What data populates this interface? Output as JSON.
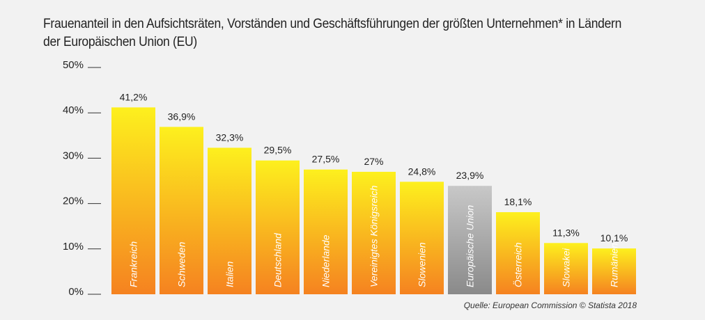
{
  "chart_data": {
    "type": "bar",
    "title": "Frauenanteil in den Aufsichtsräten, Vorständen und Geschäftsführungen der größten Unternehmen* in Ländern der Europäischen Union (EU)",
    "source": "Quelle: European Commission © Statista 2018",
    "ylim": [
      0,
      50
    ],
    "yticks": [
      {
        "value": 0,
        "label": "0%"
      },
      {
        "value": 10,
        "label": "10%"
      },
      {
        "value": 20,
        "label": "20%"
      },
      {
        "value": 30,
        "label": "30%"
      },
      {
        "value": 40,
        "label": "40%"
      },
      {
        "value": 50,
        "label": "50%"
      }
    ],
    "grid": false,
    "categories": [
      "Frankreich",
      "Schweden",
      "Italien",
      "Deutschland",
      "Niederlande",
      "Vereinigtes Königsreich",
      "Slowenien",
      "Europäische Union",
      "Österreich",
      "Slowakei",
      "Rumänien"
    ],
    "values": [
      41.2,
      36.9,
      32.3,
      29.5,
      27.5,
      27,
      24.8,
      23.9,
      18.1,
      11.3,
      10.1
    ],
    "value_labels": [
      "41,2%",
      "36,9%",
      "32,3%",
      "29,5%",
      "27,5%",
      "27%",
      "24,8%",
      "23,9%",
      "18,1%",
      "11,3%",
      "10,1%"
    ],
    "highlight": "Europäische Union",
    "colors": {
      "bar_top": "#fdf01e",
      "bar_bottom": "#f58220",
      "highlight_top": "#c8c8c8",
      "highlight_bottom": "#8a8a8a"
    }
  }
}
